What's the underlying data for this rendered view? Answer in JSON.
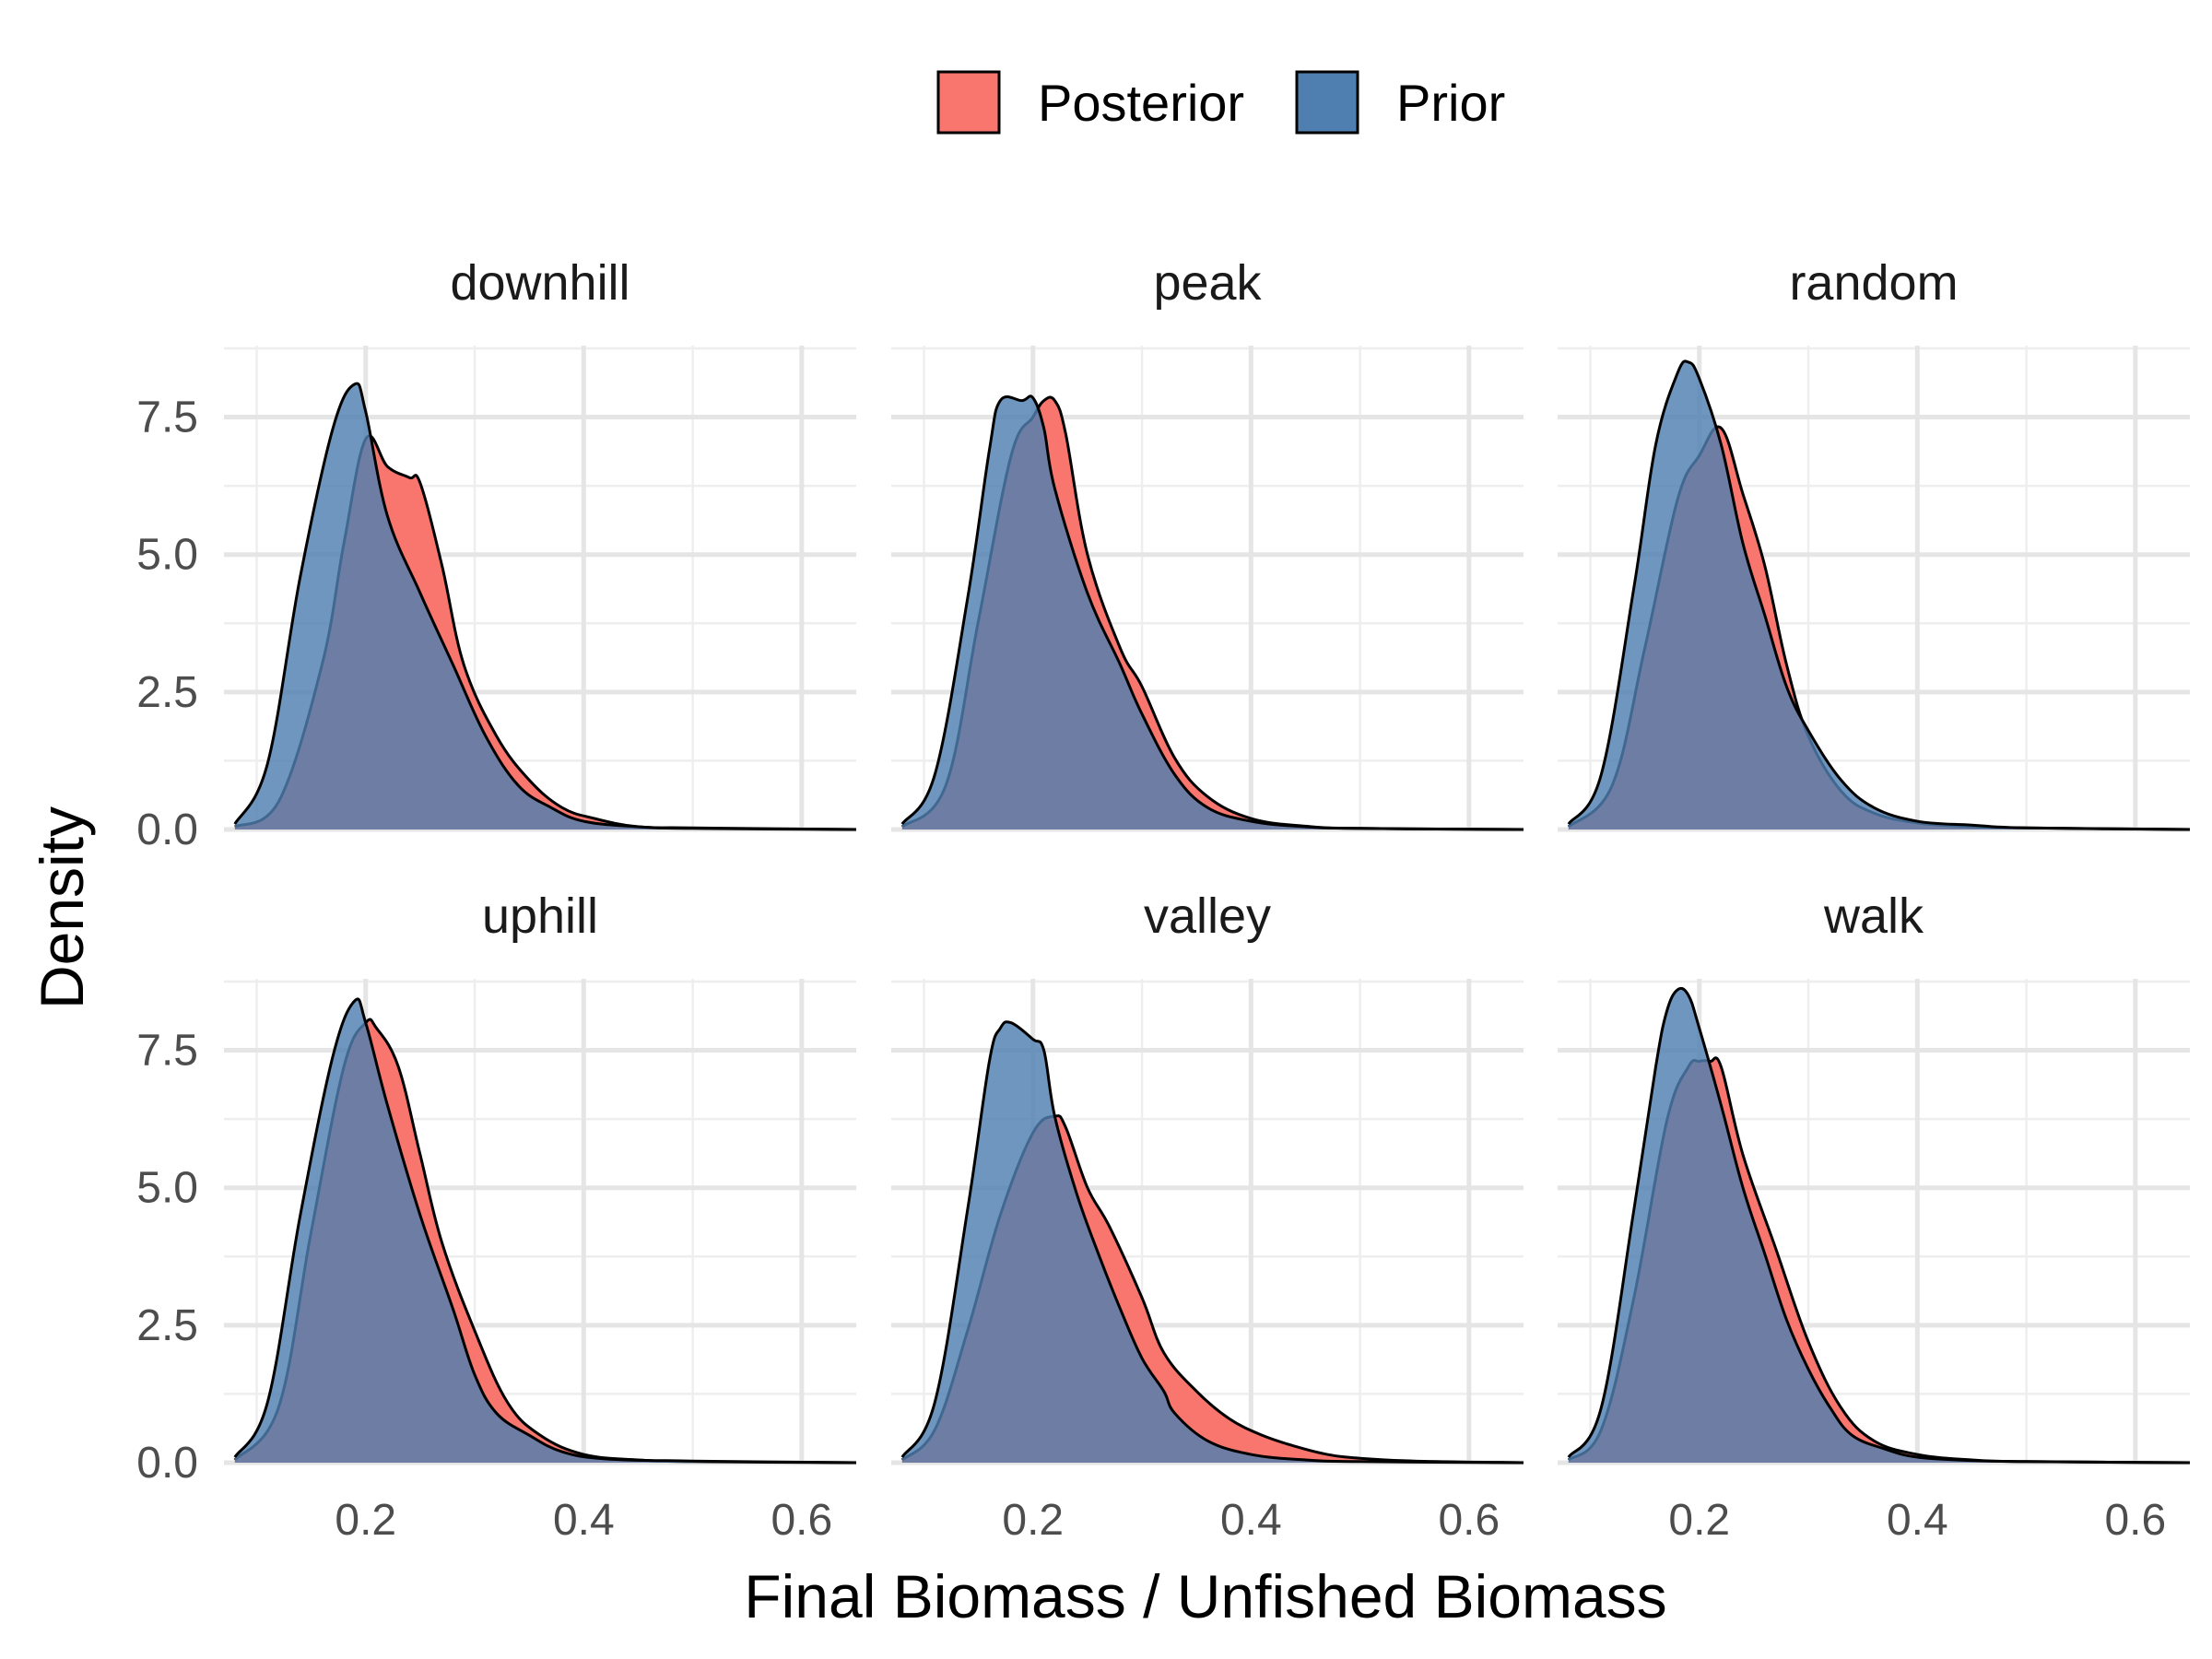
{
  "chart_data": {
    "type": "area",
    "xlabel": "Final Biomass / Unfished Biomass",
    "ylabel": "Density",
    "xlim": [
      0.07,
      0.65
    ],
    "ylim": [
      0,
      8.8
    ],
    "x_ticks": [
      0.2,
      0.4,
      0.6
    ],
    "x_tick_labels": [
      "0.2",
      "0.4",
      "0.6"
    ],
    "y_ticks": [
      0,
      2.5,
      5,
      7.5
    ],
    "y_tick_labels": [
      "0.0",
      "2.5",
      "5.0",
      "7.5"
    ],
    "legend": {
      "position": "top",
      "entries": [
        "Posterior",
        "Prior"
      ]
    },
    "colors": {
      "Posterior": "#F8766D",
      "Prior": "#4F7FB0",
      "overlap": "#5D6590"
    },
    "grid": true,
    "facets": [
      {
        "label": "downhill",
        "series": [
          {
            "name": "Posterior",
            "x": [
              0.08,
              0.12,
              0.16,
              0.18,
              0.2,
              0.22,
              0.24,
              0.25,
              0.27,
              0.29,
              0.32,
              0.35,
              0.38,
              0.41,
              0.45,
              0.5,
              0.65
            ],
            "y": [
              0.05,
              0.5,
              3.0,
              5.2,
              7.1,
              6.6,
              6.4,
              6.3,
              4.8,
              3.0,
              1.7,
              0.9,
              0.4,
              0.2,
              0.05,
              0.03,
              0
            ]
          },
          {
            "name": "Prior",
            "x": [
              0.08,
              0.11,
              0.14,
              0.17,
              0.19,
              0.2,
              0.22,
              0.25,
              0.28,
              0.31,
              0.34,
              0.37,
              0.4,
              0.45,
              0.5,
              0.65
            ],
            "y": [
              0.1,
              1.2,
              4.6,
              7.3,
              8.1,
              7.6,
              5.7,
              4.3,
              3.0,
              1.7,
              0.8,
              0.4,
              0.15,
              0.05,
              0.02,
              0
            ]
          }
        ]
      },
      {
        "label": "peak",
        "series": [
          {
            "name": "Posterior",
            "x": [
              0.08,
              0.12,
              0.15,
              0.18,
              0.2,
              0.21,
              0.22,
              0.23,
              0.25,
              0.28,
              0.3,
              0.33,
              0.36,
              0.4,
              0.45,
              0.5,
              0.65
            ],
            "y": [
              0.05,
              0.8,
              3.8,
              6.8,
              7.5,
              7.8,
              7.8,
              7.2,
              5.0,
              3.3,
              2.6,
              1.3,
              0.6,
              0.2,
              0.06,
              0.02,
              0
            ]
          },
          {
            "name": "Prior",
            "x": [
              0.08,
              0.11,
              0.14,
              0.16,
              0.17,
              0.19,
              0.2,
              0.21,
              0.22,
              0.25,
              0.28,
              0.3,
              0.33,
              0.36,
              0.4,
              0.45,
              0.5,
              0.65
            ],
            "y": [
              0.1,
              1.0,
              4.2,
              6.9,
              7.8,
              7.8,
              7.85,
              7.3,
              6.2,
              4.3,
              3.0,
              2.1,
              1.0,
              0.4,
              0.15,
              0.05,
              0.02,
              0
            ]
          }
        ]
      },
      {
        "label": "random",
        "series": [
          {
            "name": "Posterior",
            "x": [
              0.08,
              0.12,
              0.15,
              0.18,
              0.2,
              0.22,
              0.24,
              0.26,
              0.28,
              0.3,
              0.33,
              0.36,
              0.4,
              0.45,
              0.5,
              0.65
            ],
            "y": [
              0.05,
              0.8,
              3.3,
              6.0,
              6.8,
              7.3,
              6.1,
              4.8,
              3.0,
              1.7,
              0.7,
              0.3,
              0.12,
              0.05,
              0.03,
              0
            ]
          },
          {
            "name": "Prior",
            "x": [
              0.08,
              0.11,
              0.14,
              0.16,
              0.18,
              0.19,
              0.2,
              0.22,
              0.24,
              0.26,
              0.28,
              0.3,
              0.33,
              0.36,
              0.4,
              0.45,
              0.5,
              0.65
            ],
            "y": [
              0.1,
              1.0,
              4.4,
              7.0,
              8.3,
              8.5,
              8.2,
              7.0,
              5.2,
              3.9,
              2.6,
              1.8,
              0.9,
              0.4,
              0.15,
              0.08,
              0.03,
              0
            ]
          }
        ]
      },
      {
        "label": "uphill",
        "series": [
          {
            "name": "Posterior",
            "x": [
              0.08,
              0.12,
              0.15,
              0.18,
              0.2,
              0.21,
              0.23,
              0.25,
              0.27,
              0.3,
              0.33,
              0.36,
              0.4,
              0.45,
              0.5,
              0.65
            ],
            "y": [
              0.05,
              1.0,
              4.2,
              7.2,
              8.0,
              7.9,
              7.2,
              5.6,
              4.0,
              2.4,
              1.1,
              0.5,
              0.15,
              0.05,
              0.02,
              0
            ]
          },
          {
            "name": "Prior",
            "x": [
              0.08,
              0.11,
              0.14,
              0.17,
              0.19,
              0.2,
              0.22,
              0.25,
              0.28,
              0.3,
              0.32,
              0.35,
              0.38,
              0.42,
              0.5,
              0.65
            ],
            "y": [
              0.1,
              1.1,
              4.5,
              7.4,
              8.4,
              8.0,
              6.5,
              4.5,
              2.8,
              1.6,
              0.9,
              0.5,
              0.2,
              0.07,
              0.03,
              0
            ]
          }
        ]
      },
      {
        "label": "valley",
        "series": [
          {
            "name": "Posterior",
            "x": [
              0.08,
              0.11,
              0.14,
              0.17,
              0.2,
              0.22,
              0.23,
              0.25,
              0.27,
              0.3,
              0.32,
              0.35,
              0.38,
              0.41,
              0.44,
              0.47,
              0.5,
              0.55,
              0.65
            ],
            "y": [
              0.05,
              0.6,
              2.4,
              4.5,
              6.0,
              6.3,
              6.1,
              5.0,
              4.3,
              3.0,
              2.0,
              1.3,
              0.8,
              0.5,
              0.3,
              0.15,
              0.08,
              0.03,
              0
            ]
          },
          {
            "name": "Prior",
            "x": [
              0.08,
              0.11,
              0.14,
              0.16,
              0.17,
              0.18,
              0.2,
              0.21,
              0.22,
              0.24,
              0.26,
              0.28,
              0.3,
              0.32,
              0.33,
              0.36,
              0.4,
              0.45,
              0.5,
              0.65
            ],
            "y": [
              0.1,
              1.1,
              4.6,
              7.3,
              7.9,
              8.0,
              7.7,
              7.5,
              6.3,
              4.9,
              3.8,
              2.8,
              1.9,
              1.3,
              0.9,
              0.4,
              0.15,
              0.05,
              0.02,
              0
            ]
          }
        ]
      },
      {
        "label": "walk",
        "series": [
          {
            "name": "Posterior",
            "x": [
              0.08,
              0.11,
              0.14,
              0.17,
              0.19,
              0.2,
              0.21,
              0.22,
              0.24,
              0.27,
              0.3,
              0.33,
              0.36,
              0.4,
              0.45,
              0.5,
              0.65
            ],
            "y": [
              0.05,
              0.6,
              3.0,
              6.2,
              7.2,
              7.3,
              7.3,
              7.2,
              5.6,
              3.9,
              2.2,
              1.0,
              0.4,
              0.15,
              0.05,
              0.02,
              0
            ]
          },
          {
            "name": "Prior",
            "x": [
              0.08,
              0.11,
              0.14,
              0.16,
              0.17,
              0.18,
              0.19,
              0.2,
              0.22,
              0.24,
              0.26,
              0.28,
              0.3,
              0.32,
              0.34,
              0.37,
              0.4,
              0.45,
              0.5,
              0.65
            ],
            "y": [
              0.1,
              1.0,
              4.6,
              7.2,
              8.2,
              8.6,
              8.5,
              7.9,
              6.5,
              5.0,
              3.8,
              2.6,
              1.7,
              1.0,
              0.5,
              0.25,
              0.1,
              0.04,
              0.02,
              0
            ]
          }
        ]
      }
    ]
  }
}
